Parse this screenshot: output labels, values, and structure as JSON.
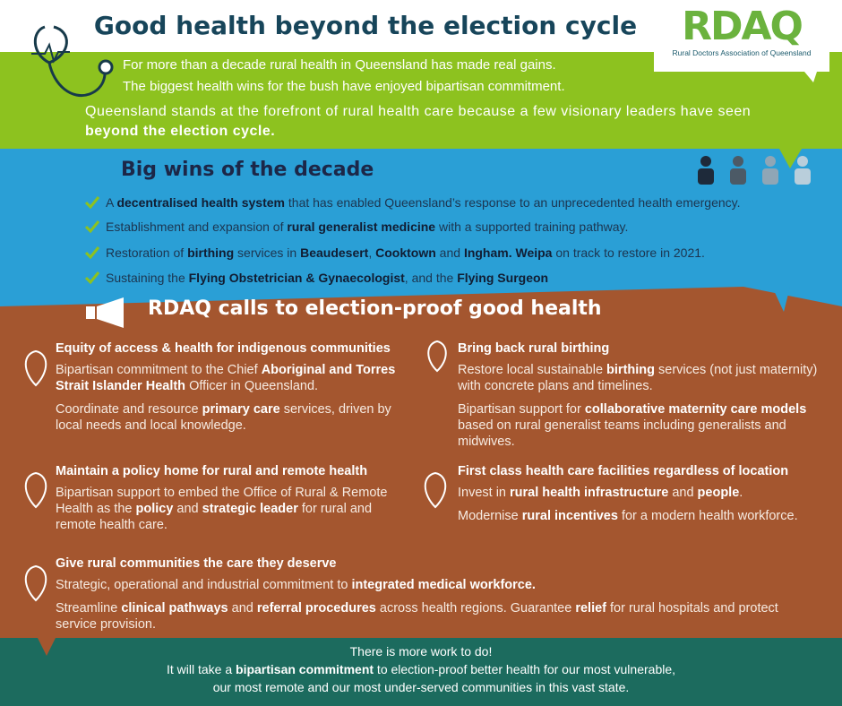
{
  "header": {
    "title": "Good health beyond the election cycle",
    "logo": {
      "text": "RDAQ",
      "subtitle": "Rural Doctors Association of Queensland"
    }
  },
  "intro": {
    "lines": [
      "For more than a decade rural health in Queensland has made real gains.",
      "The biggest health wins for the bush have enjoyed bipartisan commitment."
    ],
    "statement": [
      "Queensland stands at the forefront of rural health care because a few visionary leaders have seen ",
      {
        "bold": "beyond the election cycle."
      }
    ]
  },
  "wins": {
    "heading": "Big wins of the decade",
    "items": [
      [
        "A ",
        {
          "bold": "decentralised health system"
        },
        " that has enabled Queensland’s response to an unprecedented health emergency."
      ],
      [
        "Establishment and expansion of ",
        {
          "bold": "rural generalist medicine"
        },
        " with a supported training pathway."
      ],
      [
        "Restoration of ",
        {
          "bold": "birthing"
        },
        " services in ",
        {
          "bold": "Beaudesert"
        },
        ", ",
        {
          "bold": "Cooktown"
        },
        " and ",
        {
          "bold": "Ingham.  Weipa"
        },
        " on track to restore in 2021."
      ],
      [
        "Sustaining the ",
        {
          "bold": "Flying Obstetrician & Gynaecologist"
        },
        ", and the ",
        {
          "bold": "Flying Surgeon"
        }
      ]
    ]
  },
  "calls": {
    "heading": "RDAQ calls to election-proof good health",
    "sections": [
      {
        "title": "Equity of access & health for indigenous communities",
        "paragraphs": [
          [
            "Bipartisan commitment to the Chief ",
            {
              "bold": "Aboriginal and Torres Strait Islander Health"
            },
            " Officer in Queensland."
          ],
          [
            "Coordinate and resource ",
            {
              "bold": "primary care"
            },
            " services, driven by local needs and local knowledge."
          ]
        ]
      },
      {
        "title": "Bring back rural birthing",
        "paragraphs": [
          [
            "Restore local sustainable ",
            {
              "bold": "birthing"
            },
            " services (not just maternity) with concrete plans and timelines."
          ],
          [
            "Bipartisan support for ",
            {
              "bold": "collaborative maternity care models"
            },
            " based on rural generalist teams including generalists and midwives."
          ]
        ]
      },
      {
        "title": "Maintain a policy home for rural and remote health",
        "paragraphs": [
          [
            "Bipartisan support to embed the Office of Rural & Remote Health as the ",
            {
              "bold": "policy"
            },
            " and ",
            {
              "bold": "strategic leader"
            },
            " for rural and remote health care."
          ]
        ]
      },
      {
        "title": "First class health care facilities regardless of location",
        "paragraphs": [
          [
            "Invest in  ",
            {
              "bold": "rural health infrastructure"
            },
            " and ",
            {
              "bold": "people"
            },
            "."
          ],
          [
            "Modernise ",
            {
              "bold": "rural incentives"
            },
            " for a modern health workforce."
          ]
        ]
      },
      {
        "title": "Give rural communities the care they deserve",
        "paragraphs": [
          [
            "Strategic, operational and industrial commitment to ",
            {
              "bold": "integrated medical workforce."
            }
          ],
          [
            "Streamline ",
            {
              "bold": "clinical pathways"
            },
            " and ",
            {
              "bold": "referral procedures"
            },
            " across health regions. Guarantee ",
            {
              "bold": "relief"
            },
            " for rural hospitals and protect service provision."
          ]
        ]
      }
    ]
  },
  "footer": {
    "lines": [
      [
        "There is more work to do!"
      ],
      [
        "It will take a ",
        {
          "bold": "bipartisan commitment"
        },
        " to election-proof  better health for our most vulnerable,"
      ],
      [
        "our most remote and our most under-served communities in this vast state."
      ]
    ]
  }
}
